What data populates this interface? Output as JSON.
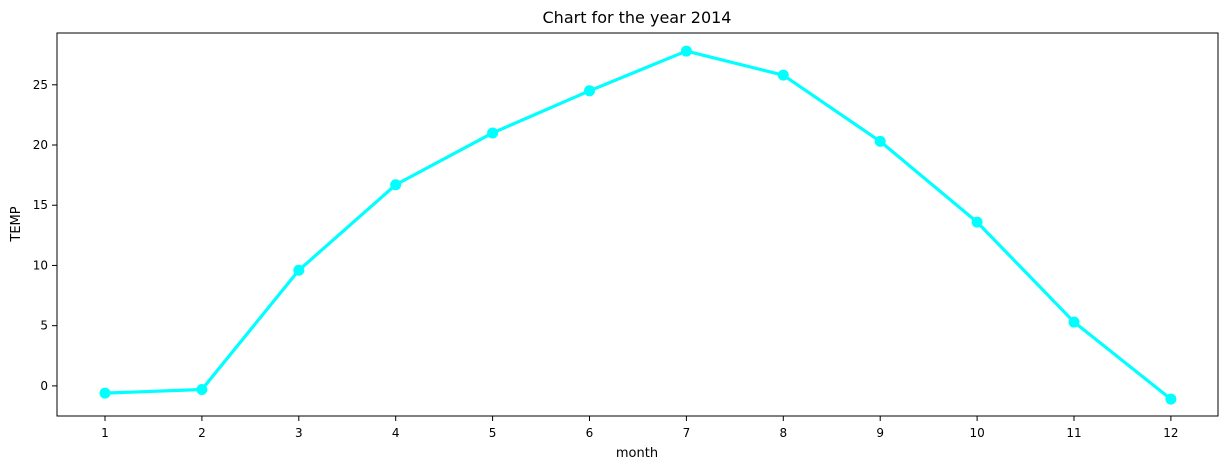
{
  "chart_data": {
    "type": "line",
    "title": "Chart for the year 2014",
    "xlabel": "month",
    "ylabel": "TEMP",
    "categories": [
      "1",
      "2",
      "3",
      "4",
      "5",
      "6",
      "7",
      "8",
      "9",
      "10",
      "11",
      "12"
    ],
    "series": [
      {
        "values": [
          -0.6,
          -0.3,
          9.6,
          16.7,
          21.0,
          24.5,
          27.8,
          25.8,
          20.3,
          13.6,
          5.3,
          -1.1
        ],
        "color": "#00ffff",
        "marker": "circle"
      }
    ],
    "yticks": [
      0,
      5,
      10,
      15,
      20,
      25
    ],
    "ylim": [
      -2.5,
      29.3
    ],
    "grid": false,
    "legend": "none"
  }
}
